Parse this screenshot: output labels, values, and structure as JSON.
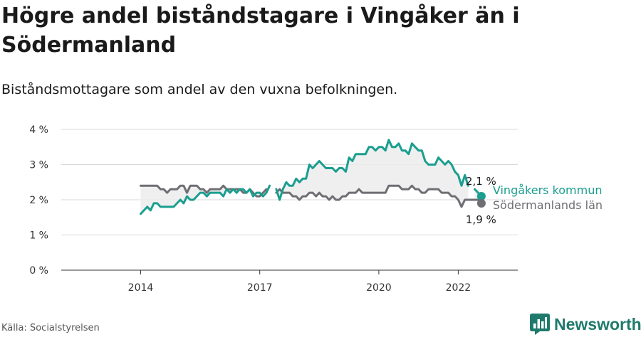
{
  "header": {
    "title": "Högre andel biståndstagare i Vingåker än i Södermanland",
    "subtitle": "Biståndsmottagare som andel av den vuxna befolkningen."
  },
  "footer": {
    "source": "Källa: Socialstyrelsen",
    "brand": "Newsworthy"
  },
  "colors": {
    "vingaker": "#1a9e8f",
    "sodermanland": "#6e6e73",
    "band": "#ececec",
    "grid": "#d9d9d9",
    "brand": "#1f7a6c"
  },
  "icons": {
    "brand_logo": "bar-chart-logo-icon"
  },
  "chart_data": {
    "type": "line",
    "title": "Högre andel biståndstagare i Vingåker än i Södermanland",
    "subtitle": "Biståndsmottagare som andel av den vuxna befolkningen.",
    "x_unit": "month",
    "x_start": "2014-01",
    "xlim": [
      "2012-01",
      "2023-07"
    ],
    "x_ticks": [
      {
        "value": "2014-01",
        "label": "2014"
      },
      {
        "value": "2017-01",
        "label": "2017"
      },
      {
        "value": "2020-01",
        "label": "2020"
      },
      {
        "value": "2022-01",
        "label": "2022"
      }
    ],
    "ylim": [
      0,
      4
    ],
    "y_ticks": [
      {
        "value": 0,
        "label": "0 %"
      },
      {
        "value": 1,
        "label": "1 %"
      },
      {
        "value": 2,
        "label": "2 %"
      },
      {
        "value": 3,
        "label": "3 %"
      },
      {
        "value": 4,
        "label": "4 %"
      }
    ],
    "grid": true,
    "series": [
      {
        "name": "Vingåkers kommun",
        "color": "#1a9e8f",
        "end_label": "2,1 %",
        "values": [
          1.6,
          1.7,
          1.8,
          1.7,
          1.9,
          1.9,
          1.8,
          1.8,
          1.8,
          1.8,
          1.8,
          1.9,
          2.0,
          1.9,
          2.1,
          2.0,
          2.0,
          2.1,
          2.2,
          2.2,
          2.1,
          2.2,
          2.2,
          2.2,
          2.2,
          2.1,
          2.3,
          2.2,
          2.3,
          2.2,
          2.3,
          2.3,
          2.2,
          2.3,
          2.1,
          2.2,
          2.2,
          2.1,
          2.2,
          2.4,
          null,
          2.3,
          2.0,
          2.3,
          2.5,
          2.4,
          2.4,
          2.6,
          2.5,
          2.6,
          2.6,
          3.0,
          2.9,
          3.0,
          3.1,
          3.0,
          2.9,
          2.9,
          2.9,
          2.8,
          2.9,
          2.9,
          2.8,
          3.2,
          3.1,
          3.3,
          3.3,
          3.3,
          3.3,
          3.5,
          3.5,
          3.4,
          3.5,
          3.5,
          3.4,
          3.7,
          3.5,
          3.5,
          3.6,
          3.4,
          3.4,
          3.3,
          3.6,
          3.5,
          3.4,
          3.4,
          3.1,
          3.0,
          3.0,
          3.0,
          3.2,
          3.1,
          3.0,
          3.1,
          3.0,
          2.8,
          2.7,
          2.4,
          2.7,
          2.4,
          null,
          2.3,
          2.2,
          2.1
        ]
      },
      {
        "name": "Södermanlands län",
        "color": "#6e6e73",
        "end_label": "1,9 %",
        "values": [
          2.4,
          2.4,
          2.4,
          2.4,
          2.4,
          2.4,
          2.3,
          2.3,
          2.2,
          2.3,
          2.3,
          2.3,
          2.4,
          2.4,
          2.2,
          2.4,
          2.4,
          2.4,
          2.3,
          2.3,
          2.2,
          2.3,
          2.3,
          2.3,
          2.3,
          2.4,
          2.3,
          2.3,
          2.3,
          2.3,
          2.3,
          2.2,
          2.2,
          2.3,
          2.2,
          2.1,
          2.1,
          2.2,
          2.3,
          null,
          null,
          2.2,
          2.3,
          2.2,
          2.2,
          2.2,
          2.1,
          2.1,
          2.0,
          2.1,
          2.1,
          2.2,
          2.2,
          2.1,
          2.2,
          2.1,
          2.1,
          2.0,
          2.1,
          2.0,
          2.0,
          2.1,
          2.1,
          2.2,
          2.2,
          2.2,
          2.3,
          2.2,
          2.2,
          2.2,
          2.2,
          2.2,
          2.2,
          2.2,
          2.2,
          2.4,
          2.4,
          2.4,
          2.4,
          2.3,
          2.3,
          2.3,
          2.4,
          2.3,
          2.3,
          2.2,
          2.2,
          2.3,
          2.3,
          2.3,
          2.3,
          2.2,
          2.2,
          2.2,
          2.1,
          2.1,
          2.0,
          1.8,
          2.0,
          2.0,
          2.0,
          2.0,
          2.0,
          1.9
        ]
      }
    ],
    "shaded_band_between_series": true,
    "legend": "direct labels at line ends"
  }
}
